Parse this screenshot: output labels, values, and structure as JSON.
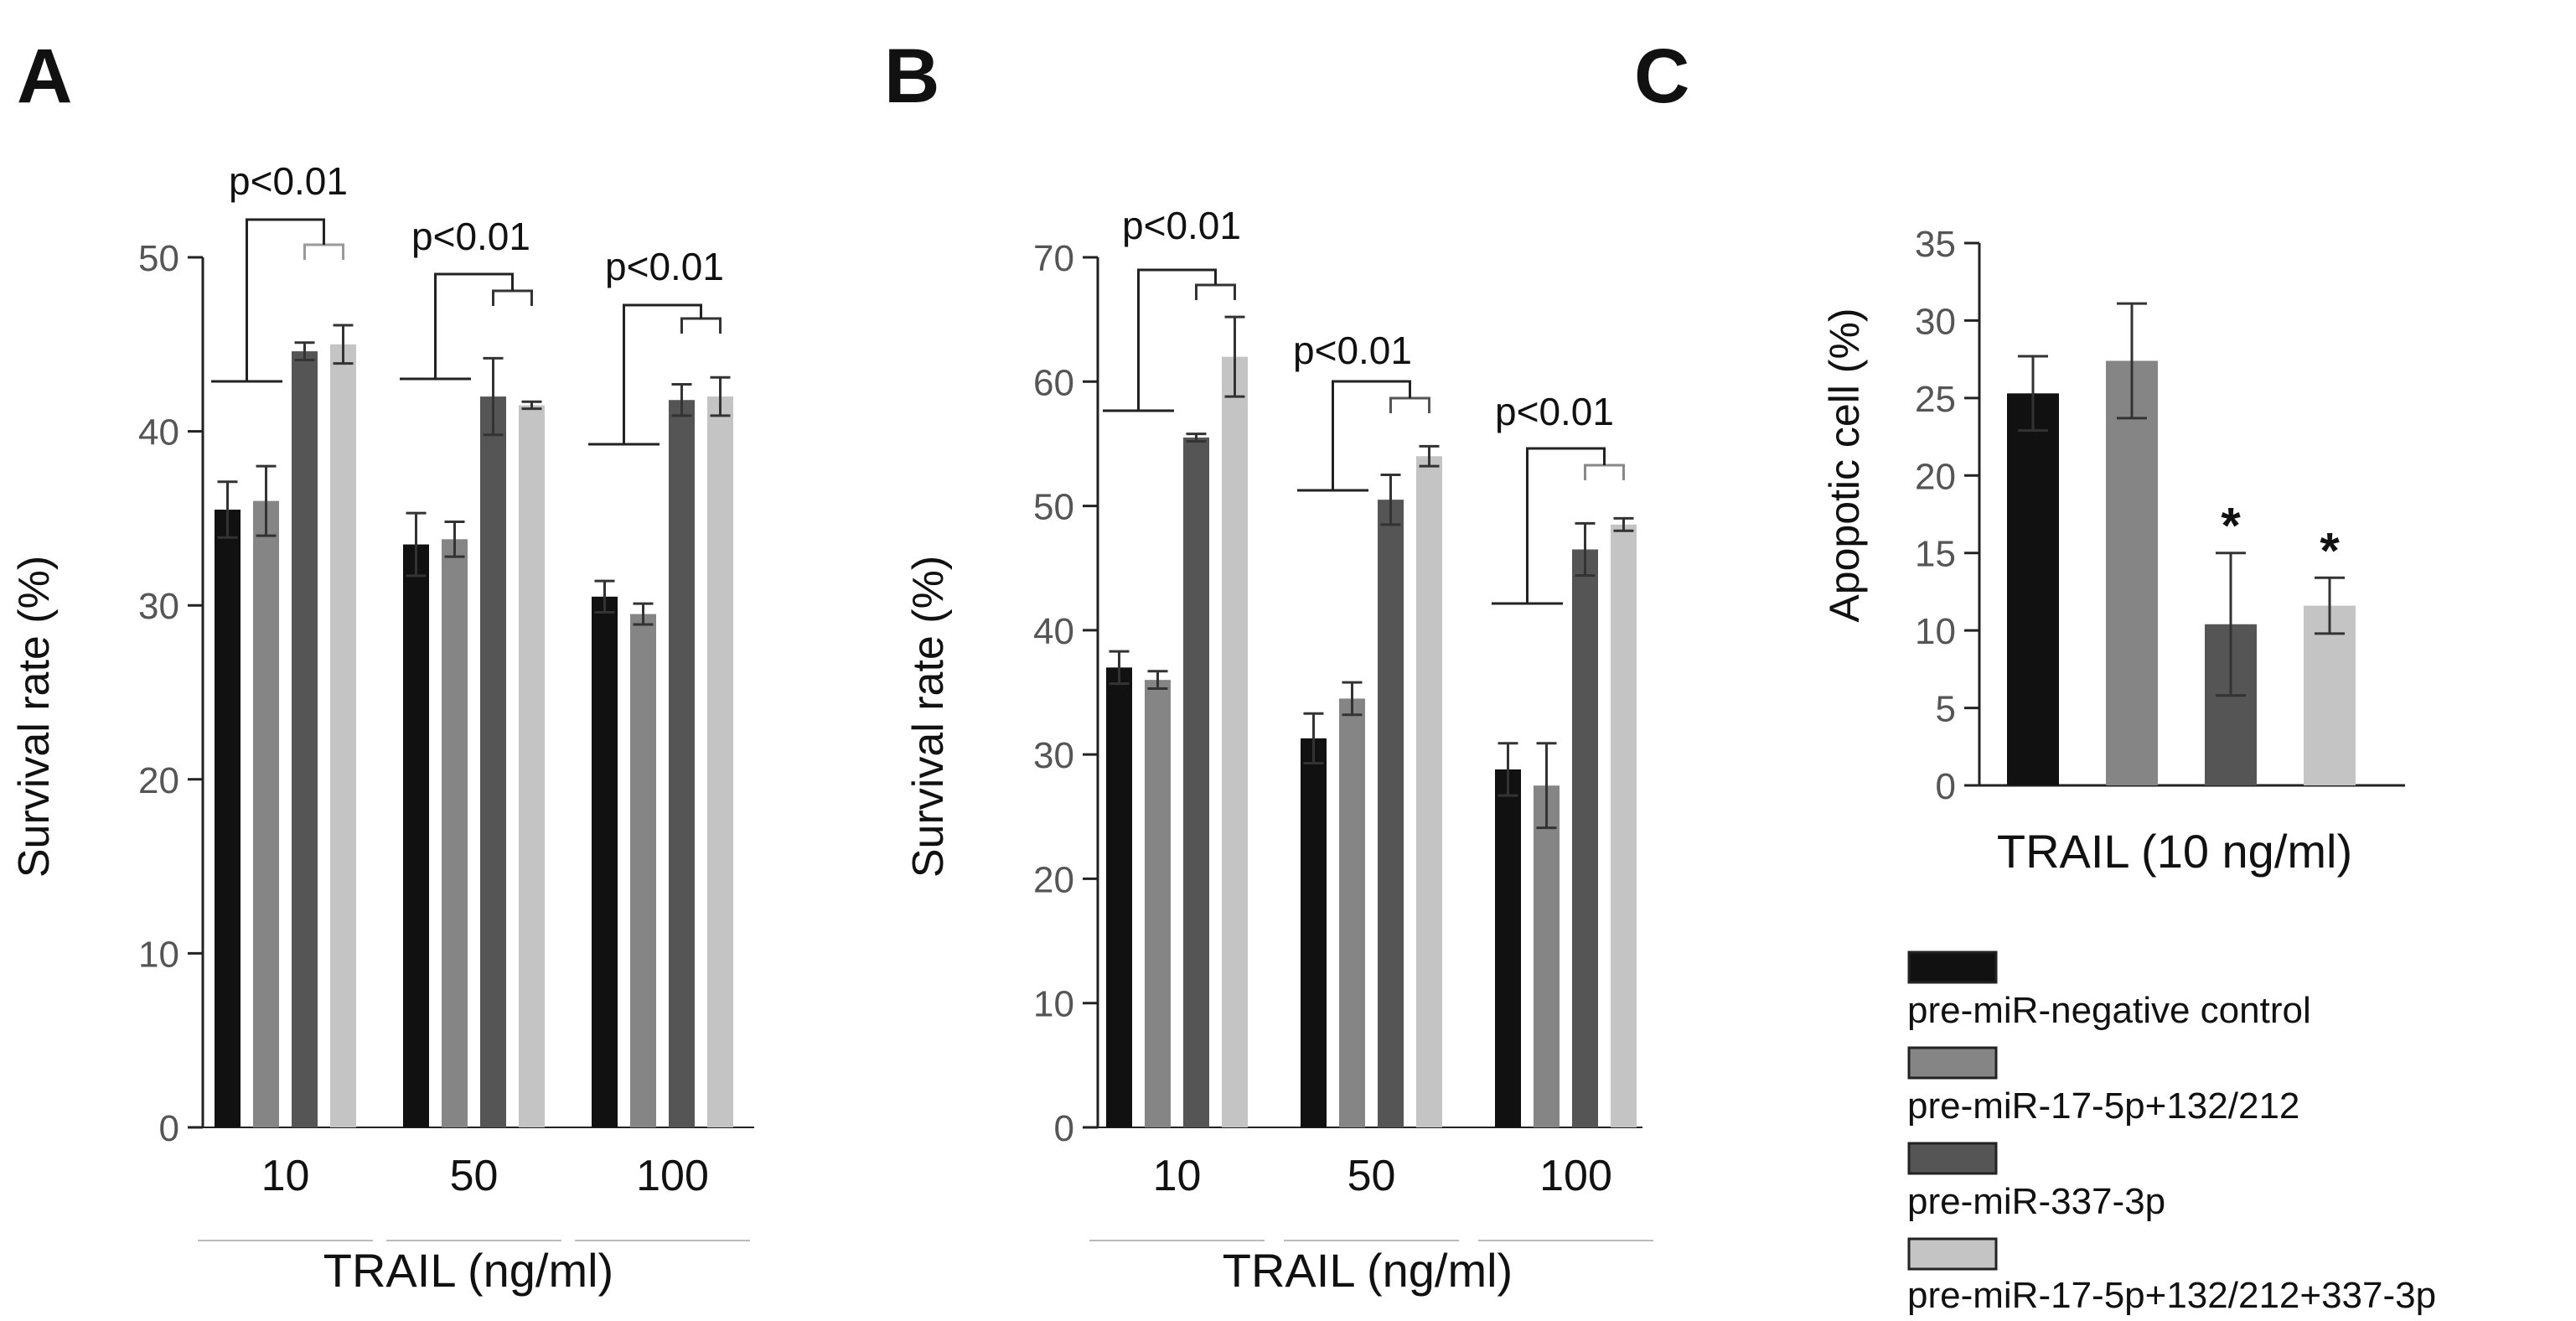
{
  "colors": {
    "series": [
      "#111111",
      "#858585",
      "#555555",
      "#c4c4c4"
    ],
    "axis": "#222222",
    "tick_text": "#555555",
    "error_bar": "#333333"
  },
  "legend": {
    "items": [
      "pre-miR-negative control",
      "pre-miR-17-5p+132/212",
      "pre-miR-337-3p",
      "pre-miR-17-5p+132/212+337-3p"
    ]
  },
  "chart_data": [
    {
      "panel_label": "A",
      "type": "bar",
      "xlabel": "TRAIL (ng/ml)",
      "ylabel": "Survival rate (%)",
      "ylim": [
        0,
        50
      ],
      "yticks": [
        "0",
        "10",
        "20",
        "30",
        "40",
        "50"
      ],
      "categories": [
        "10",
        "50",
        "100"
      ],
      "series": [
        {
          "name": "pre-miR-negative control",
          "values": [
            35.5,
            33.5,
            30.5
          ],
          "errors": [
            1.6,
            1.8,
            0.9
          ]
        },
        {
          "name": "pre-miR-17-5p+132/212",
          "values": [
            36.0,
            33.8,
            29.5
          ],
          "errors": [
            2.0,
            1.0,
            0.6
          ]
        },
        {
          "name": "pre-miR-337-3p",
          "values": [
            44.6,
            42.0,
            41.8
          ],
          "errors": [
            0.5,
            2.2,
            0.9
          ]
        },
        {
          "name": "pre-miR-17-5p+132/212+337-3p",
          "values": [
            45.0,
            41.5,
            42.0
          ],
          "errors": [
            1.1,
            0.2,
            1.1
          ]
        }
      ],
      "annotations": [
        "p<0.01",
        "p<0.01",
        "p<0.01"
      ]
    },
    {
      "panel_label": "B",
      "type": "bar",
      "xlabel": "TRAIL (ng/ml)",
      "ylabel": "Survival rate (%)",
      "ylim": [
        0,
        70
      ],
      "yticks": [
        "0",
        "10",
        "20",
        "30",
        "40",
        "50",
        "60",
        "70"
      ],
      "categories": [
        "10",
        "50",
        "100"
      ],
      "series": [
        {
          "name": "pre-miR-negative control",
          "values": [
            37.0,
            31.3,
            28.8
          ],
          "errors": [
            1.3,
            2.0,
            2.1
          ]
        },
        {
          "name": "pre-miR-17-5p+132/212",
          "values": [
            36.0,
            34.5,
            27.5
          ],
          "errors": [
            0.7,
            1.3,
            3.4
          ]
        },
        {
          "name": "pre-miR-337-3p",
          "values": [
            55.5,
            50.5,
            46.5
          ],
          "errors": [
            0.3,
            2.0,
            2.1
          ]
        },
        {
          "name": "pre-miR-17-5p+132/212+337-3p",
          "values": [
            62.0,
            54.0,
            48.5
          ],
          "errors": [
            3.2,
            0.8,
            0.5
          ]
        }
      ],
      "annotations": [
        "p<0.01",
        "p<0.01",
        "p<0.01"
      ]
    },
    {
      "panel_label": "C",
      "type": "bar",
      "xlabel": "TRAIL (10 ng/ml)",
      "ylabel": "Apopotic cell (%)",
      "ylim": [
        0,
        35
      ],
      "yticks": [
        "0",
        "5",
        "10",
        "15",
        "20",
        "25",
        "30",
        "35"
      ],
      "categories": [
        "pre-miR-negative control",
        "pre-miR-17-5p+132/212",
        "pre-miR-337-3p",
        "pre-miR-17-5p+132/212+337-3p"
      ],
      "values": [
        25.3,
        27.4,
        10.4,
        11.6
      ],
      "errors": [
        2.4,
        3.7,
        4.6,
        1.8
      ],
      "significance": [
        "",
        "",
        "*",
        "*"
      ]
    }
  ]
}
